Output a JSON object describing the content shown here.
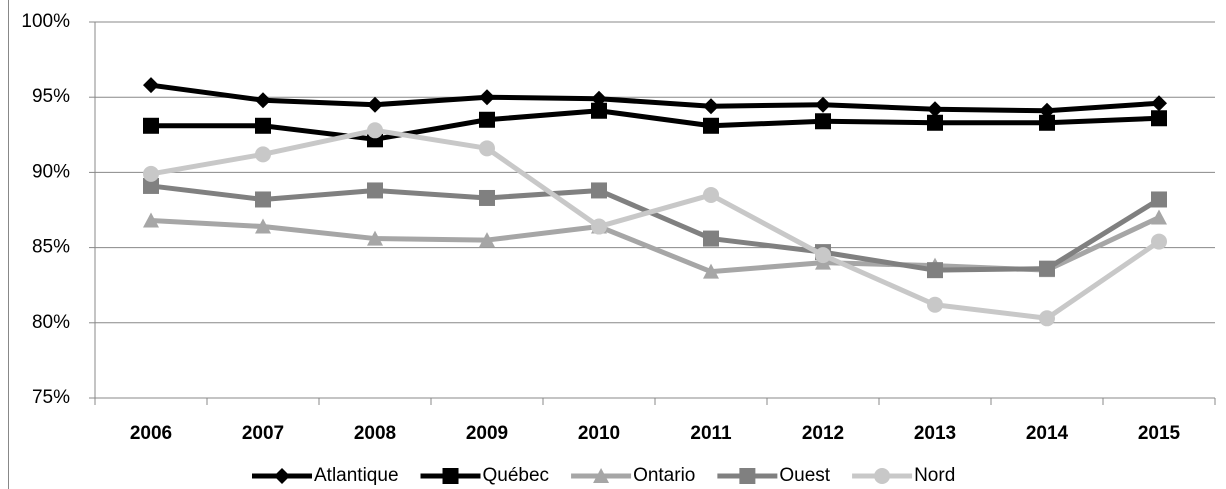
{
  "chart_data": {
    "type": "line",
    "categories": [
      "2006",
      "2007",
      "2008",
      "2009",
      "2010",
      "2011",
      "2012",
      "2013",
      "2014",
      "2015"
    ],
    "series": [
      {
        "name": "Atlantique",
        "color": "#000000",
        "marker": "diamond",
        "values": [
          95.8,
          94.8,
          94.5,
          95.0,
          94.9,
          94.4,
          94.5,
          94.2,
          94.1,
          94.6
        ]
      },
      {
        "name": "Québec",
        "color": "#000000",
        "marker": "square",
        "values": [
          93.1,
          93.1,
          92.2,
          93.5,
          94.1,
          93.1,
          93.4,
          93.3,
          93.3,
          93.6
        ]
      },
      {
        "name": "Ontario",
        "color": "#a6a6a6",
        "marker": "triangle",
        "values": [
          86.8,
          86.4,
          85.6,
          85.5,
          86.4,
          83.4,
          84.0,
          83.8,
          83.5,
          87.0
        ]
      },
      {
        "name": "Ouest",
        "color": "#808080",
        "marker": "square",
        "values": [
          89.1,
          88.2,
          88.8,
          88.3,
          88.8,
          85.6,
          84.7,
          83.5,
          83.6,
          88.2
        ]
      },
      {
        "name": "Nord",
        "color": "#c8c8c8",
        "marker": "circle",
        "values": [
          89.9,
          91.2,
          92.8,
          91.6,
          86.4,
          88.5,
          84.5,
          81.2,
          80.3,
          85.4
        ]
      }
    ],
    "ylim": [
      75,
      100
    ],
    "yticks": [
      {
        "value": 75,
        "label": "75%"
      },
      {
        "value": 80,
        "label": "80%"
      },
      {
        "value": 85,
        "label": "85%"
      },
      {
        "value": 90,
        "label": "90%"
      },
      {
        "value": 95,
        "label": "95%"
      },
      {
        "value": 100,
        "label": "100%"
      }
    ],
    "grid": true,
    "legend": "bottom"
  }
}
